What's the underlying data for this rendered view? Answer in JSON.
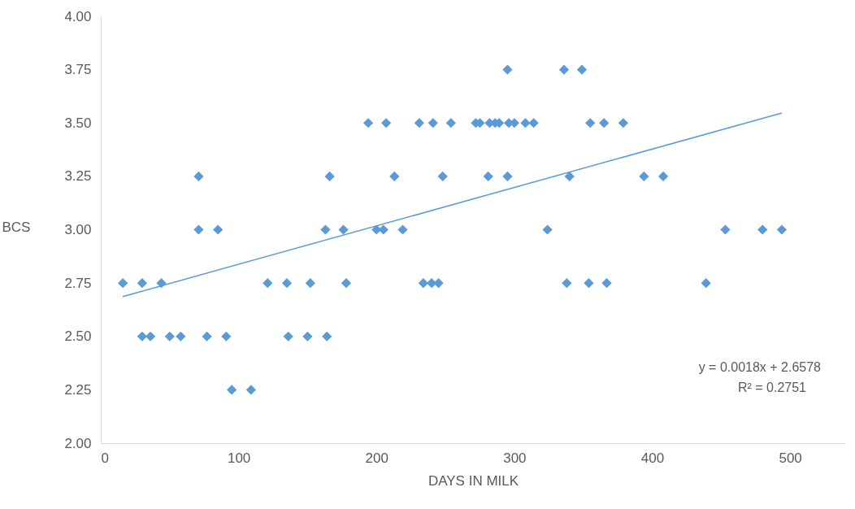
{
  "chart_data": {
    "type": "scatter",
    "xlabel": "DAYS IN MILK",
    "ylabel": "BCS",
    "xlim": [
      0,
      540
    ],
    "xticks": [
      0,
      100,
      200,
      300,
      400,
      500
    ],
    "ylim": [
      2,
      4
    ],
    "yticks": [
      {
        "value": 2,
        "label": "2.00"
      },
      {
        "value": 2.25,
        "label": "2.25"
      },
      {
        "value": 2.5,
        "label": "2.50"
      },
      {
        "value": 2.75,
        "label": "2.75"
      },
      {
        "value": 3,
        "label": "3.00"
      },
      {
        "value": 3.25,
        "label": "3.25"
      },
      {
        "value": 3.5,
        "label": "3.50"
      },
      {
        "value": 3.75,
        "label": "3.75"
      },
      {
        "value": 4,
        "label": "4.00"
      }
    ],
    "grid": false,
    "series": [
      {
        "color": "#5b9bd5",
        "marker": "diamond",
        "x": [
          16,
          30,
          44,
          121,
          135,
          152,
          178,
          234,
          240,
          245,
          338,
          354,
          367,
          439,
          30,
          36,
          50,
          58,
          77,
          91,
          136,
          150,
          164,
          95,
          109,
          71,
          85,
          163,
          176,
          200,
          205,
          219,
          324,
          453,
          480,
          494,
          71,
          166,
          213,
          248,
          281,
          295,
          340,
          394,
          408,
          194,
          207,
          231,
          241,
          254,
          272,
          275,
          282,
          286,
          289,
          296,
          300,
          308,
          314,
          355,
          365,
          379,
          295,
          336,
          349
        ],
        "values": [
          2.75,
          2.75,
          2.75,
          2.75,
          2.75,
          2.75,
          2.75,
          2.75,
          2.75,
          2.75,
          2.75,
          2.75,
          2.75,
          2.75,
          2.5,
          2.5,
          2.5,
          2.5,
          2.5,
          2.5,
          2.5,
          2.5,
          2.5,
          2.25,
          2.25,
          3,
          3,
          3,
          3,
          3,
          3,
          3,
          3,
          3,
          3,
          3,
          3.25,
          3.25,
          3.25,
          3.25,
          3.25,
          3.25,
          3.25,
          3.25,
          3.25,
          3.5,
          3.5,
          3.5,
          3.5,
          3.5,
          3.5,
          3.5,
          3.5,
          3.5,
          3.5,
          3.5,
          3.5,
          3.5,
          3.5,
          3.5,
          3.5,
          3.5,
          3.75,
          3.75,
          3.75
        ]
      },
      {
        "type": "line",
        "color": "#5b9bd5",
        "line_style": "solid",
        "x": [
          16,
          494
        ],
        "values": [
          2.687,
          3.547
        ]
      }
    ],
    "annotations": [
      "y = 0.0018x + 2.6578",
      "R² = 0.2751"
    ]
  }
}
